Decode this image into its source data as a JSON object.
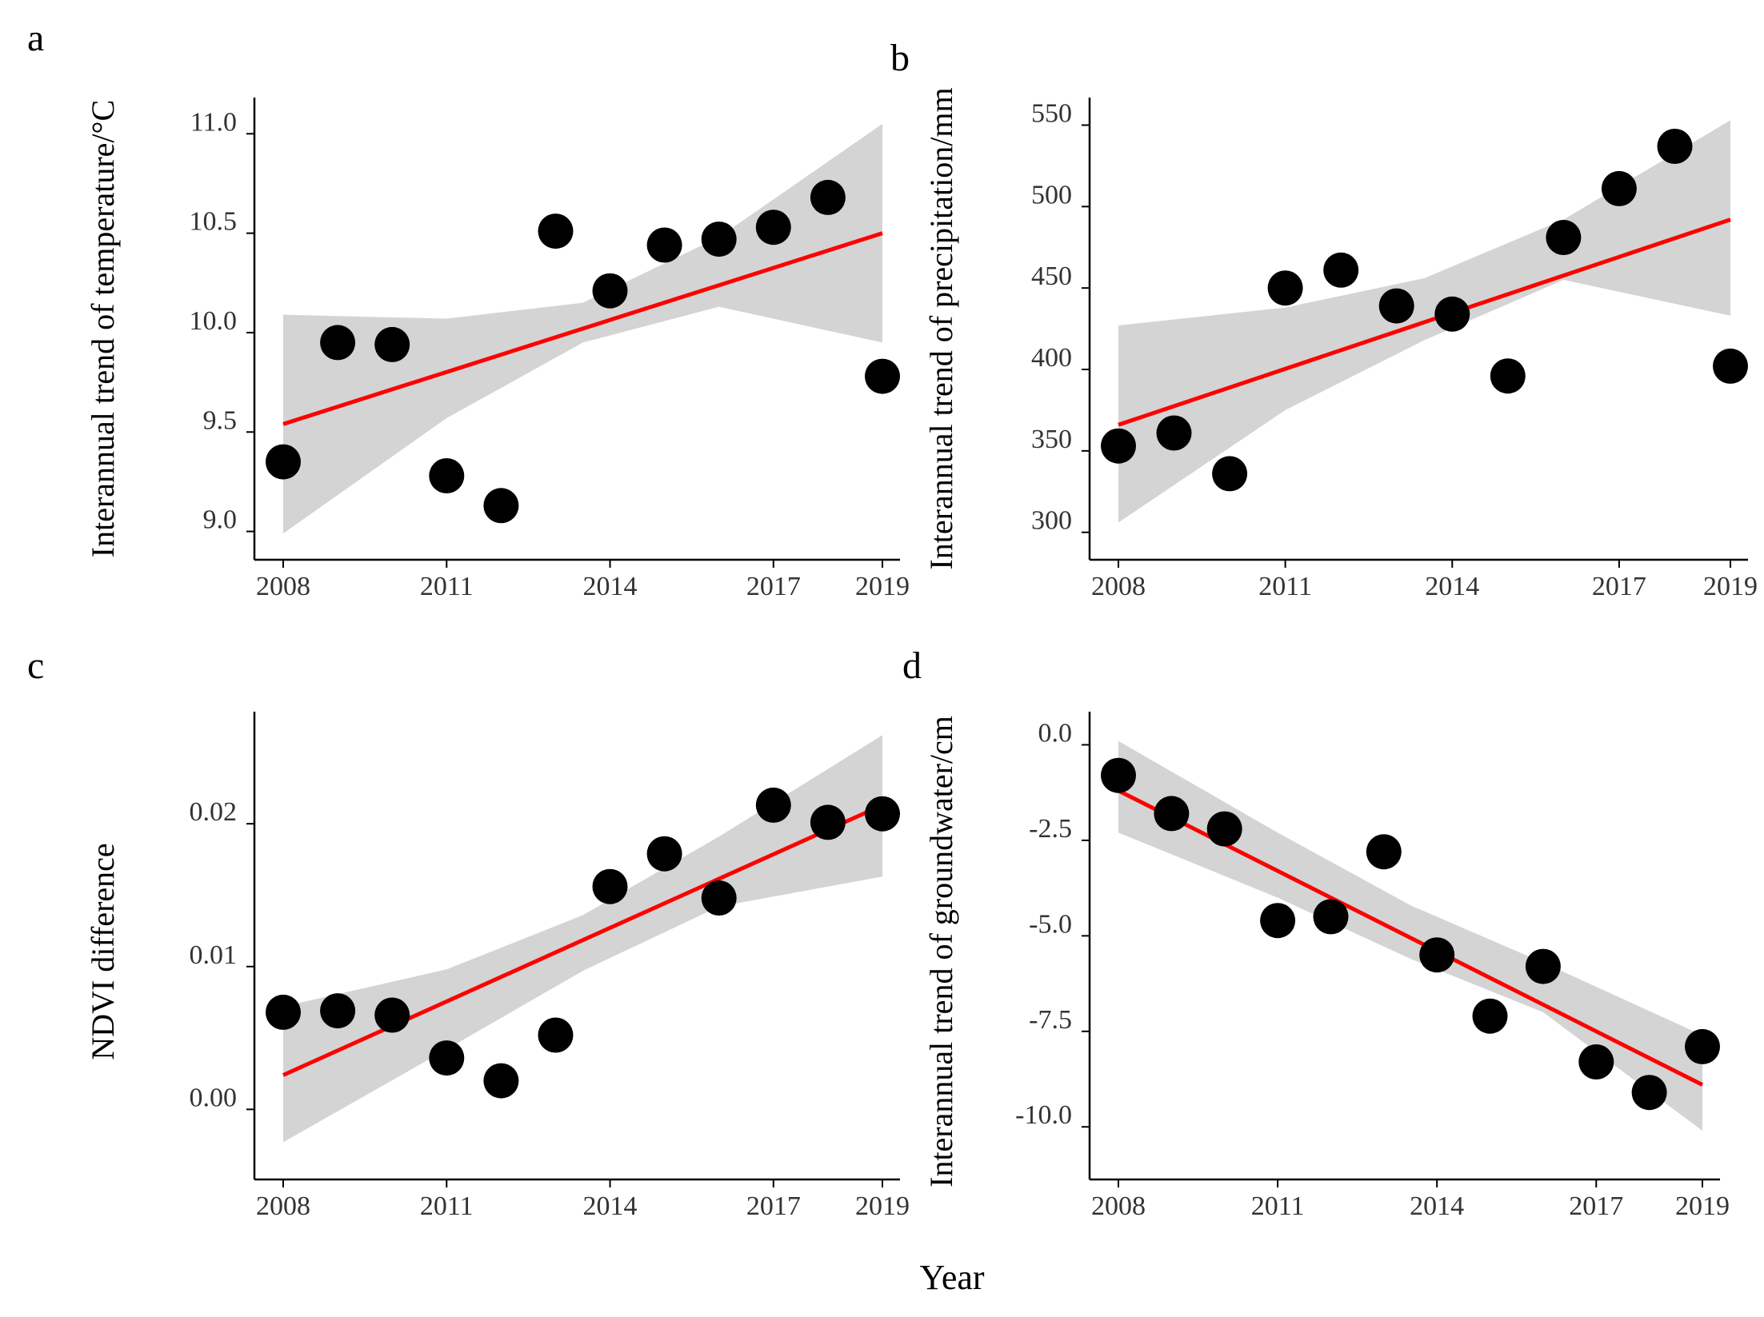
{
  "figure": {
    "common_xlabel": "Year",
    "colors": {
      "points": "#000000",
      "fit_line": "#ff0000",
      "ci_band": "#d4d4d4",
      "axis": "#000000"
    }
  },
  "chart_data": [
    {
      "type": "scatter",
      "panel_label": "a",
      "ylabel": "Interannual trend of temperature/°C",
      "x": [
        2008,
        2009,
        2010,
        2011,
        2012,
        2013,
        2014,
        2015,
        2016,
        2017,
        2018,
        2019
      ],
      "y": [
        9.35,
        9.95,
        9.94,
        9.28,
        9.13,
        10.51,
        10.21,
        10.44,
        10.47,
        10.53,
        10.68,
        9.78
      ],
      "fit": {
        "x": [
          2008,
          2019
        ],
        "y": [
          9.54,
          10.5
        ]
      },
      "ci": {
        "x": [
          2008,
          2011,
          2013.5,
          2016,
          2019
        ],
        "lower": [
          8.99,
          9.57,
          9.95,
          10.13,
          9.95
        ],
        "upper": [
          10.09,
          10.07,
          10.15,
          10.48,
          11.05
        ]
      },
      "xlim": [
        2008,
        2019
      ],
      "ylim": [
        8.93,
        11.15
      ],
      "xticks": [
        2008,
        2011,
        2014,
        2017,
        2019
      ],
      "xtick_labels": [
        "2008",
        "2011",
        "2014",
        "2017",
        "2019"
      ],
      "yticks": [
        9.0,
        9.5,
        10.0,
        10.5,
        11.0
      ],
      "ytick_labels": [
        "9.0",
        "9.5",
        "10.0",
        "10.5",
        "11.0"
      ]
    },
    {
      "type": "scatter",
      "panel_label": "b",
      "ylabel": "Interannual trend of precipitation/mm",
      "x": [
        2008,
        2009,
        2010,
        2011,
        2012,
        2013,
        2014,
        2015,
        2016,
        2017,
        2018,
        2019
      ],
      "y": [
        353,
        361,
        336,
        450,
        461,
        439,
        434,
        396,
        481,
        511,
        537,
        402
      ],
      "fit": {
        "x": [
          2008,
          2019
        ],
        "y": [
          366,
          492
        ]
      },
      "ci": {
        "x": [
          2008,
          2011,
          2013.5,
          2016,
          2019
        ],
        "lower": [
          306,
          375,
          418,
          455,
          433
        ],
        "upper": [
          427,
          438,
          456,
          492,
          553
        ]
      },
      "xlim": [
        2008,
        2019
      ],
      "ylim": [
        292,
        563
      ],
      "xticks": [
        2008,
        2011,
        2014,
        2017,
        2019
      ],
      "xtick_labels": [
        "2008",
        "2011",
        "2014",
        "2017",
        "2019"
      ],
      "yticks": [
        300,
        350,
        400,
        450,
        500,
        550
      ],
      "ytick_labels": [
        "300",
        "350",
        "400",
        "450",
        "500",
        "550"
      ]
    },
    {
      "type": "scatter",
      "panel_label": "c",
      "ylabel": "NDVI  difference",
      "x": [
        2008,
        2009,
        2010,
        2011,
        2012,
        2013,
        2014,
        2015,
        2016,
        2017,
        2018,
        2019
      ],
      "y": [
        0.0068,
        0.0069,
        0.0066,
        0.0036,
        0.002,
        0.0052,
        0.0156,
        0.0179,
        0.0148,
        0.0213,
        0.0201,
        0.0207
      ],
      "fit": {
        "x": [
          2008,
          2019
        ],
        "y": [
          0.0024,
          0.0213
        ]
      },
      "ci": {
        "x": [
          2008,
          2011,
          2013.5,
          2016,
          2019
        ],
        "lower": [
          -0.0023,
          0.0042,
          0.0097,
          0.0142,
          0.0163
        ],
        "upper": [
          0.0072,
          0.0098,
          0.0136,
          0.0191,
          0.0262
        ]
      },
      "xlim": [
        2008,
        2019
      ],
      "ylim": [
        -0.0039,
        0.0274
      ],
      "xticks": [
        2008,
        2011,
        2014,
        2017,
        2019
      ],
      "xtick_labels": [
        "2008",
        "2011",
        "2014",
        "2017",
        "2019"
      ],
      "yticks": [
        0.0,
        0.01,
        0.02
      ],
      "ytick_labels": [
        "0.00",
        "0.01",
        "0.02"
      ]
    },
    {
      "type": "scatter",
      "panel_label": "d",
      "ylabel": "Interannual trend of groundwater/cm",
      "x": [
        2008,
        2009,
        2010,
        2011,
        2012,
        2013,
        2014,
        2015,
        2016,
        2017,
        2018,
        2019
      ],
      "y": [
        -0.8,
        -1.8,
        -2.2,
        -4.6,
        -4.5,
        -2.8,
        -5.5,
        -7.1,
        -5.8,
        -8.3,
        -9.1,
        -7.9
      ],
      "fit": {
        "x": [
          2008,
          2019
        ],
        "y": [
          -1.2,
          -8.9
        ]
      },
      "ci": {
        "x": [
          2008,
          2011,
          2013.5,
          2016,
          2019
        ],
        "lower": [
          -2.3,
          -4.0,
          -5.6,
          -7.0,
          -10.1
        ],
        "upper": [
          0.1,
          -2.3,
          -4.2,
          -5.7,
          -7.6
        ]
      },
      "xlim": [
        2008,
        2019
      ],
      "ylim": [
        -11.0,
        0.7
      ],
      "xticks": [
        2008,
        2011,
        2014,
        2017,
        2019
      ],
      "xtick_labels": [
        "2008",
        "2011",
        "2014",
        "2017",
        "2019"
      ],
      "yticks": [
        -10.0,
        -7.5,
        -5.0,
        -2.5,
        0.0
      ],
      "ytick_labels": [
        "-10.0",
        "-7.5",
        "-5.0",
        "-2.5",
        "0.0"
      ]
    }
  ]
}
